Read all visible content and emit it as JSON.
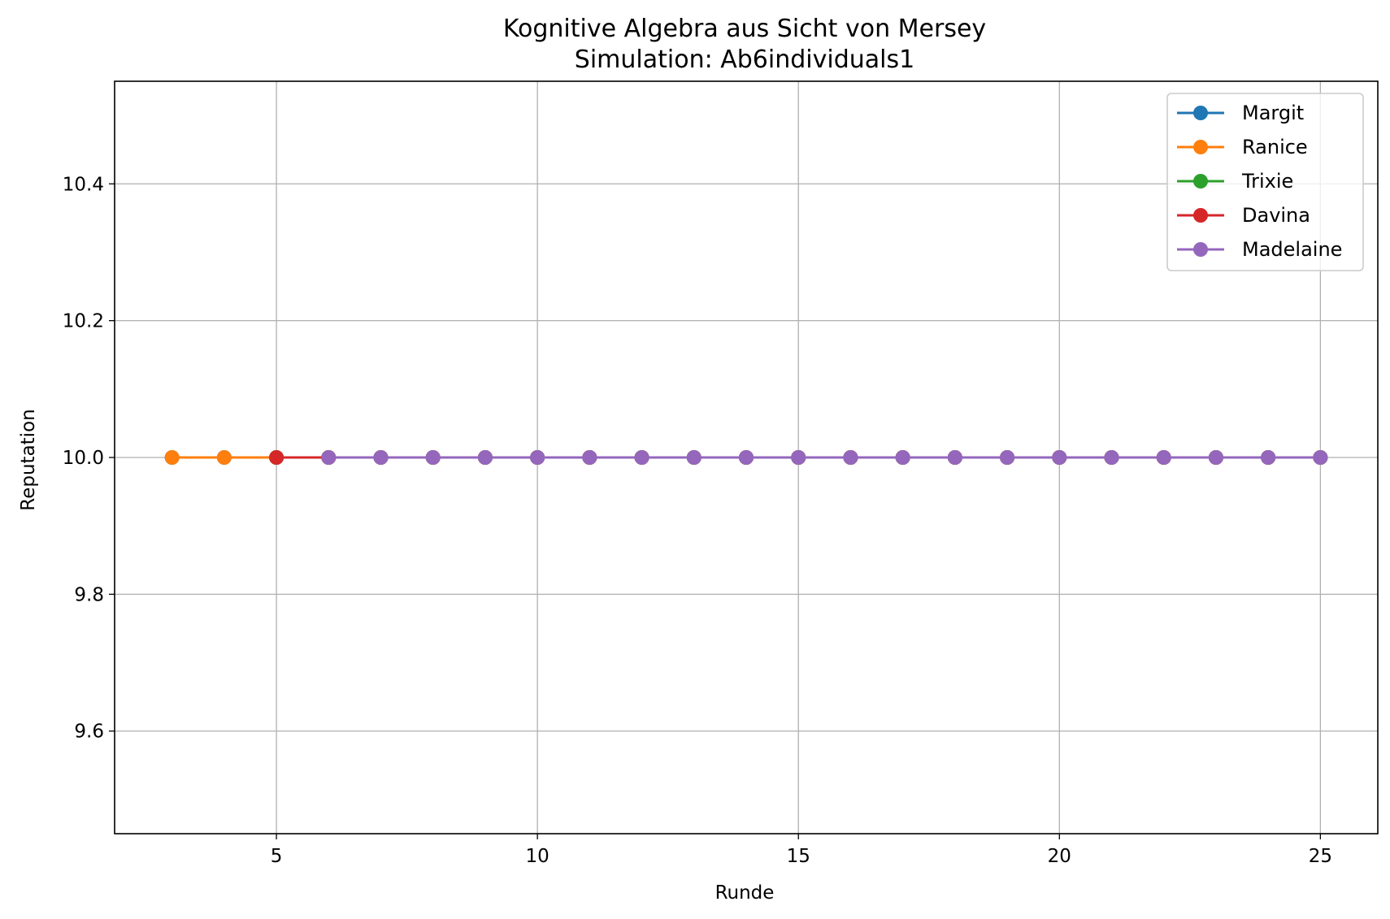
{
  "chart_data": {
    "type": "line",
    "title": "Kognitive Algebra aus Sicht von Mersey",
    "subtitle": "Simulation: Ab6individuals1",
    "xlabel": "Runde",
    "ylabel": "Reputation",
    "xlim": [
      1.9,
      26.1
    ],
    "ylim": [
      9.45,
      10.55
    ],
    "xticks": [
      5,
      10,
      15,
      20,
      25
    ],
    "yticks": [
      9.6,
      9.8,
      10.0,
      10.2,
      10.4
    ],
    "ytick_labels": [
      "9.6",
      "9.8",
      "10.0",
      "10.2",
      "10.4"
    ],
    "grid": true,
    "legend_position": "top-right",
    "series": [
      {
        "name": "Margit",
        "color": "#1f77b4",
        "marker": "circle",
        "x": [
          3,
          4,
          5,
          6,
          7,
          8,
          9,
          10,
          11,
          12,
          13,
          14,
          15,
          16,
          17,
          18,
          19,
          20,
          21,
          22,
          23,
          24,
          25
        ],
        "y": [
          10.0,
          10.0,
          10.0,
          10.0,
          10.0,
          10.0,
          10.0,
          10.0,
          10.0,
          10.0,
          10.0,
          10.0,
          10.0,
          10.0,
          10.0,
          10.0,
          10.0,
          10.0,
          10.0,
          10.0,
          10.0,
          10.0,
          10.0
        ]
      },
      {
        "name": "Ranice",
        "color": "#ff7f0e",
        "marker": "circle",
        "x": [
          3,
          4,
          5,
          6,
          7,
          8,
          9,
          10,
          11,
          12,
          13,
          14,
          15,
          16,
          17,
          18,
          19,
          20,
          21,
          22,
          23,
          24,
          25
        ],
        "y": [
          10.0,
          10.0,
          10.0,
          10.0,
          10.0,
          10.0,
          10.0,
          10.0,
          10.0,
          10.0,
          10.0,
          10.0,
          10.0,
          10.0,
          10.0,
          10.0,
          10.0,
          10.0,
          10.0,
          10.0,
          10.0,
          10.0,
          10.0
        ]
      },
      {
        "name": "Trixie",
        "color": "#2ca02c",
        "marker": "circle",
        "x": [
          5,
          6,
          7,
          8,
          9,
          10,
          11,
          12,
          13,
          14,
          15,
          16,
          17,
          18,
          19,
          20,
          21,
          22,
          23,
          24,
          25
        ],
        "y": [
          10.0,
          10.0,
          10.0,
          10.0,
          10.0,
          10.0,
          10.0,
          10.0,
          10.0,
          10.0,
          10.0,
          10.0,
          10.0,
          10.0,
          10.0,
          10.0,
          10.0,
          10.0,
          10.0,
          10.0,
          10.0
        ]
      },
      {
        "name": "Davina",
        "color": "#d62728",
        "marker": "circle",
        "x": [
          5,
          6,
          7,
          8,
          9,
          10,
          11,
          12,
          13,
          14,
          15,
          16,
          17,
          18,
          19,
          20,
          21,
          22,
          23,
          24,
          25
        ],
        "y": [
          10.0,
          10.0,
          10.0,
          10.0,
          10.0,
          10.0,
          10.0,
          10.0,
          10.0,
          10.0,
          10.0,
          10.0,
          10.0,
          10.0,
          10.0,
          10.0,
          10.0,
          10.0,
          10.0,
          10.0,
          10.0
        ]
      },
      {
        "name": "Madelaine",
        "color": "#9467bd",
        "marker": "circle",
        "x": [
          6,
          7,
          8,
          9,
          10,
          11,
          12,
          13,
          14,
          15,
          16,
          17,
          18,
          19,
          20,
          21,
          22,
          23,
          24,
          25
        ],
        "y": [
          10.0,
          10.0,
          10.0,
          10.0,
          10.0,
          10.0,
          10.0,
          10.0,
          10.0,
          10.0,
          10.0,
          10.0,
          10.0,
          10.0,
          10.0,
          10.0,
          10.0,
          10.0,
          10.0,
          10.0
        ]
      }
    ]
  }
}
